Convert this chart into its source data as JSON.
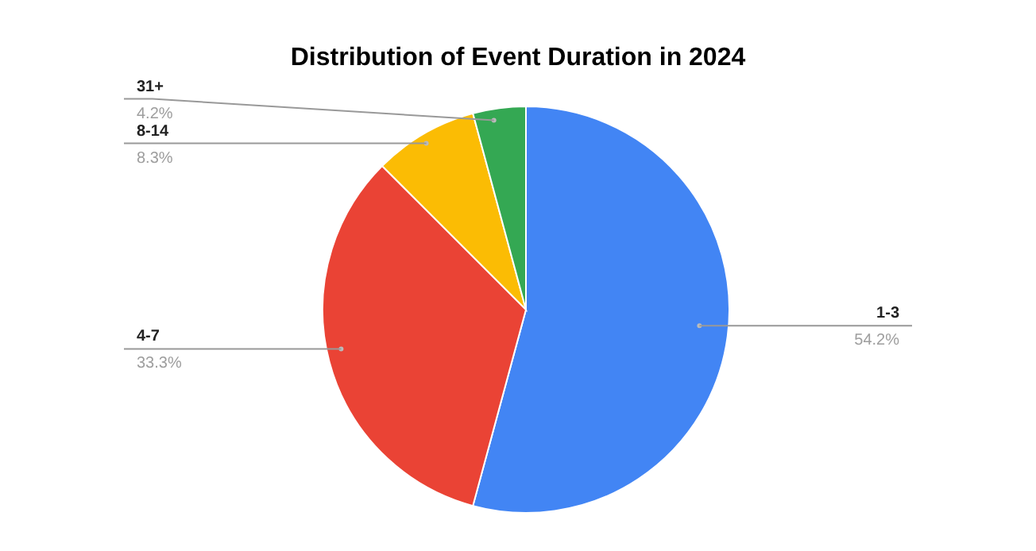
{
  "chart_data": {
    "type": "pie",
    "title": "Distribution of Event Duration in 2024",
    "categories": [
      "1-3",
      "4-7",
      "8-14",
      "31+"
    ],
    "values": [
      54.2,
      33.3,
      8.3,
      4.2
    ],
    "colors": [
      "#4285f4",
      "#ea4335",
      "#fbbc04",
      "#34a853"
    ],
    "value_labels": [
      "54.2%",
      "33.3%",
      "8.3%",
      "4.2%"
    ]
  }
}
